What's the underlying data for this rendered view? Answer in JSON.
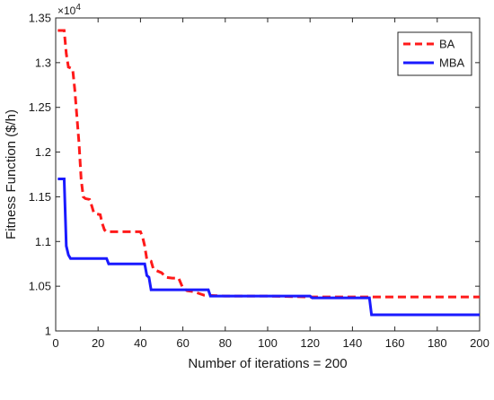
{
  "chart_data": {
    "type": "line",
    "xlabel": "Number of iterations = 200",
    "ylabel": "Fitness Function ($/h)",
    "y_multiplier": "×10",
    "y_multiplier_exp": "4",
    "xlim": [
      0,
      200
    ],
    "ylim": [
      1.0,
      1.35
    ],
    "x_ticks": [
      0,
      20,
      40,
      60,
      80,
      100,
      120,
      140,
      160,
      180,
      200
    ],
    "y_ticks": [
      1,
      1.05,
      1.1,
      1.15,
      1.2,
      1.25,
      1.3,
      1.35
    ],
    "x_tick_labels": [
      "0",
      "20",
      "40",
      "60",
      "80",
      "100",
      "120",
      "140",
      "160",
      "180",
      "200"
    ],
    "y_tick_labels": [
      "1",
      "1.05",
      "1.1",
      "1.15",
      "1.2",
      "1.25",
      "1.3",
      "1.35"
    ],
    "grid": false,
    "legend_position": "top-right",
    "series": [
      {
        "name": "BA",
        "color": "#ff1a1a",
        "style": "dashed",
        "x": [
          1,
          4,
          5,
          6,
          8,
          9,
          10,
          11,
          12,
          13,
          14,
          16,
          17,
          18,
          19,
          21,
          22,
          23,
          24,
          26,
          30,
          35,
          40,
          41,
          42,
          43,
          44,
          45,
          46,
          47,
          48,
          50,
          52,
          55,
          58,
          60,
          62,
          65,
          70,
          80,
          100,
          120,
          140,
          150,
          200
        ],
        "y": [
          1.336,
          1.336,
          1.31,
          1.295,
          1.293,
          1.27,
          1.24,
          1.21,
          1.17,
          1.15,
          1.148,
          1.147,
          1.14,
          1.132,
          1.131,
          1.13,
          1.12,
          1.113,
          1.111,
          1.111,
          1.111,
          1.111,
          1.111,
          1.105,
          1.095,
          1.08,
          1.079,
          1.078,
          1.07,
          1.068,
          1.067,
          1.065,
          1.06,
          1.059,
          1.059,
          1.048,
          1.045,
          1.044,
          1.04,
          1.039,
          1.039,
          1.038,
          1.038,
          1.038,
          1.038
        ]
      },
      {
        "name": "MBA",
        "color": "#1a1aff",
        "style": "solid",
        "x": [
          1,
          4,
          5,
          6,
          7,
          8,
          20,
          24,
          25,
          30,
          35,
          40,
          42,
          43,
          44,
          45,
          50,
          60,
          70,
          72,
          73,
          80,
          100,
          120,
          121,
          140,
          147,
          148,
          149,
          160,
          200
        ],
        "y": [
          1.17,
          1.17,
          1.095,
          1.085,
          1.081,
          1.081,
          1.081,
          1.081,
          1.075,
          1.075,
          1.075,
          1.075,
          1.075,
          1.062,
          1.06,
          1.046,
          1.046,
          1.046,
          1.046,
          1.046,
          1.039,
          1.039,
          1.039,
          1.039,
          1.037,
          1.037,
          1.037,
          1.037,
          1.018,
          1.018,
          1.018
        ]
      }
    ]
  }
}
